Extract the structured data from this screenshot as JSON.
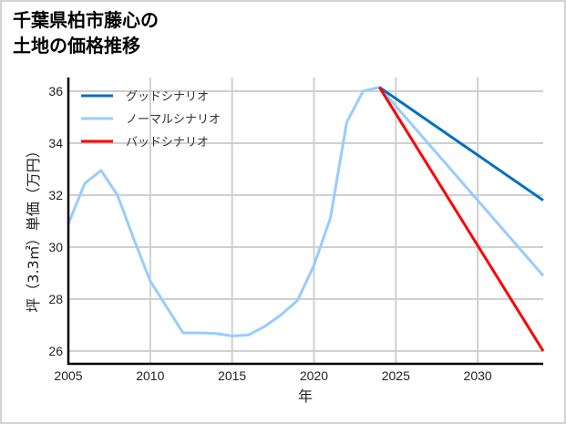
{
  "title": {
    "line1": "千葉県柏市藤心の",
    "line2": "土地の価格推移"
  },
  "chart_data": {
    "type": "line",
    "title": "千葉県柏市藤心の土地の価格推移",
    "xlabel": "年",
    "ylabel": "坪（3.3㎡）単価（万円）",
    "xlim": [
      2005,
      2034
    ],
    "ylim": [
      25.5,
      36.5
    ],
    "xticks": [
      2005,
      2010,
      2015,
      2020,
      2025,
      2030
    ],
    "yticks": [
      26,
      28,
      30,
      32,
      34,
      36
    ],
    "grid": true,
    "legend_position": "upper left",
    "series": [
      {
        "name": "グッドシナリオ",
        "color": "#0070C0",
        "x": [
          2024,
          2034
        ],
        "values": [
          36.15,
          31.8
        ]
      },
      {
        "name": "ノーマルシナリオ",
        "color": "#99CCFF",
        "x": [
          2005,
          2006,
          2007,
          2008,
          2009,
          2010,
          2011,
          2012,
          2013,
          2014,
          2015,
          2016,
          2017,
          2018,
          2019,
          2020,
          2021,
          2022,
          2023,
          2024,
          2034
        ],
        "values": [
          30.9,
          32.45,
          32.95,
          32.0,
          30.3,
          28.7,
          27.7,
          26.7,
          26.7,
          26.68,
          26.58,
          26.62,
          26.95,
          27.4,
          27.95,
          29.3,
          31.1,
          34.8,
          36.0,
          36.15,
          28.9
        ]
      },
      {
        "name": "バッドシナリオ",
        "color": "#FF0000",
        "x": [
          2024,
          2034
        ],
        "values": [
          36.15,
          26.0
        ]
      }
    ]
  }
}
